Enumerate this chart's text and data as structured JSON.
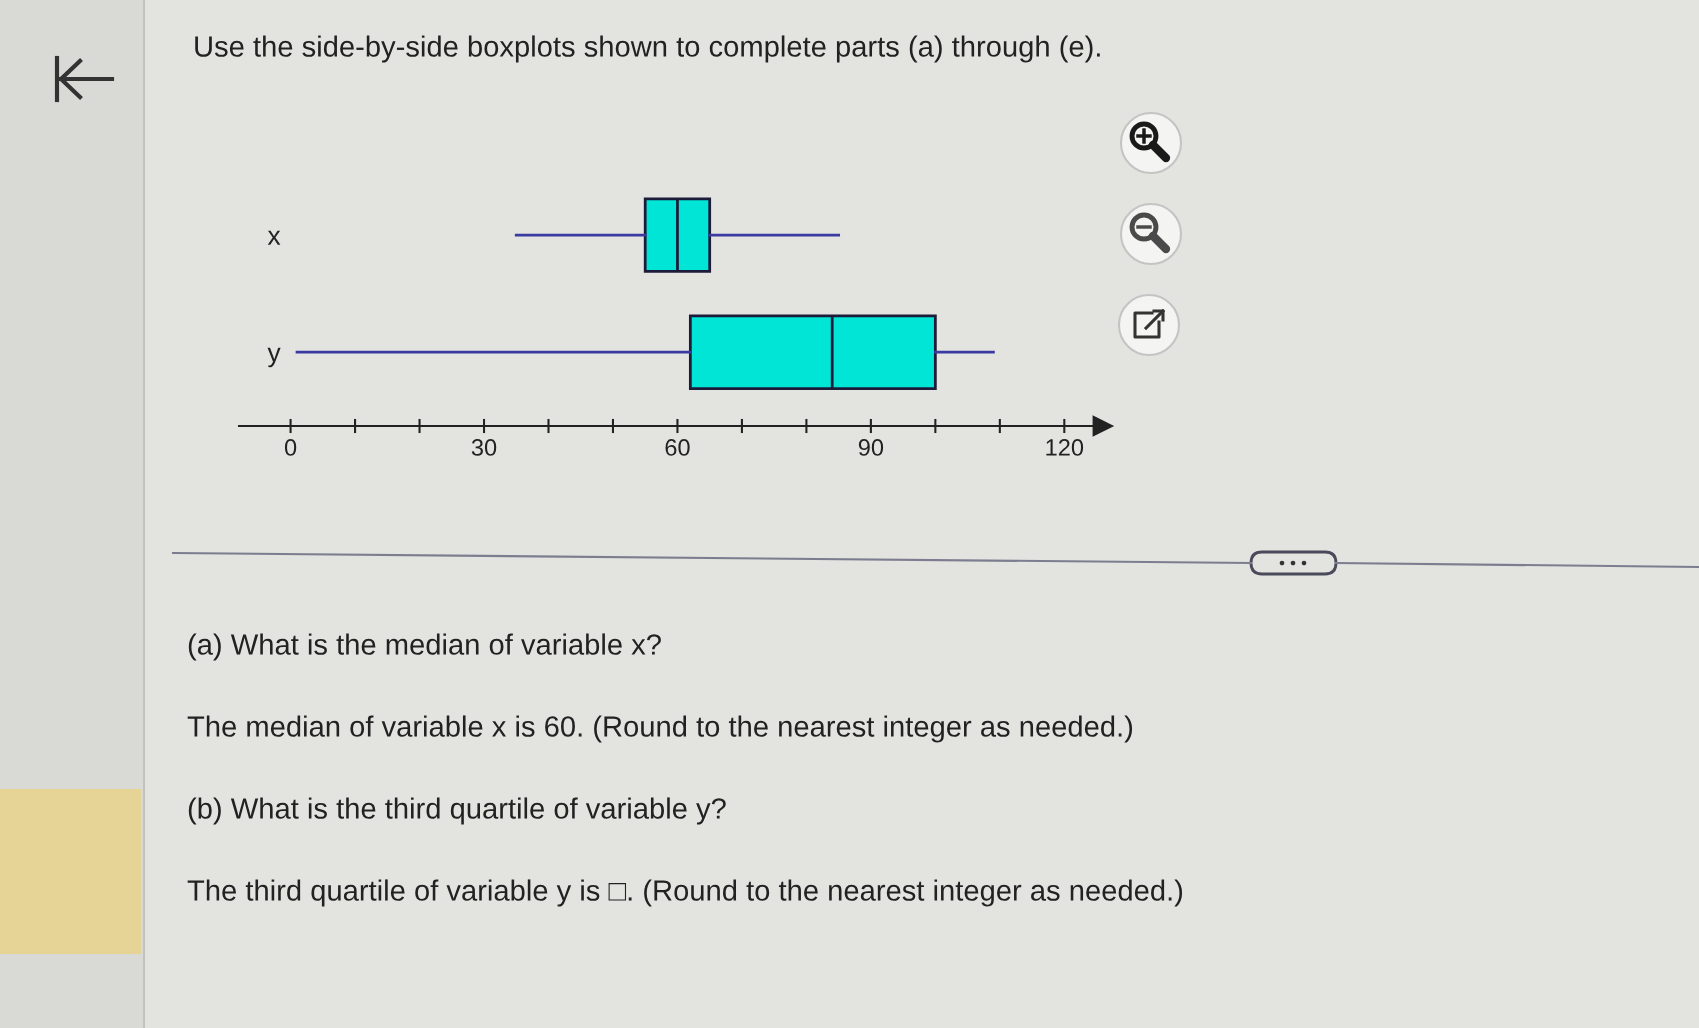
{
  "chart_data": {
    "type": "box",
    "title": "Use the side-by-side boxplots shown to complete parts (a) through (e).",
    "categories": [
      "x",
      "y"
    ],
    "orientation": "horizontal",
    "series": [
      {
        "color": "#00e5d5",
        "boxes": [
          {
            "low": 35,
            "q1": 55,
            "median": 60,
            "q3": 65,
            "high": 85
          },
          {
            "low": 1,
            "q1": 62,
            "median": 84,
            "q3": 100,
            "high": 109
          }
        ]
      }
    ],
    "xlim": [
      -8,
      126
    ],
    "xticks": [
      0,
      {
        "value": 10,
        "label": null
      },
      {
        "value": 20,
        "label": null
      },
      30,
      {
        "value": 40,
        "label": null
      },
      {
        "value": 50,
        "label": null
      },
      60,
      {
        "value": 70,
        "label": null
      },
      {
        "value": 80,
        "label": null
      },
      90,
      {
        "value": 100,
        "label": null
      },
      {
        "value": 110,
        "label": null
      },
      120
    ],
    "annotations": [
      "(a) What is the median of variable x?",
      "The median of variable x is 60. (Round to the nearest integer as needed.)",
      "(b) What is the third quartile of variable y?",
      "The third quartile of variable y is □. (Round to the nearest integer as needed.)"
    ]
  }
}
